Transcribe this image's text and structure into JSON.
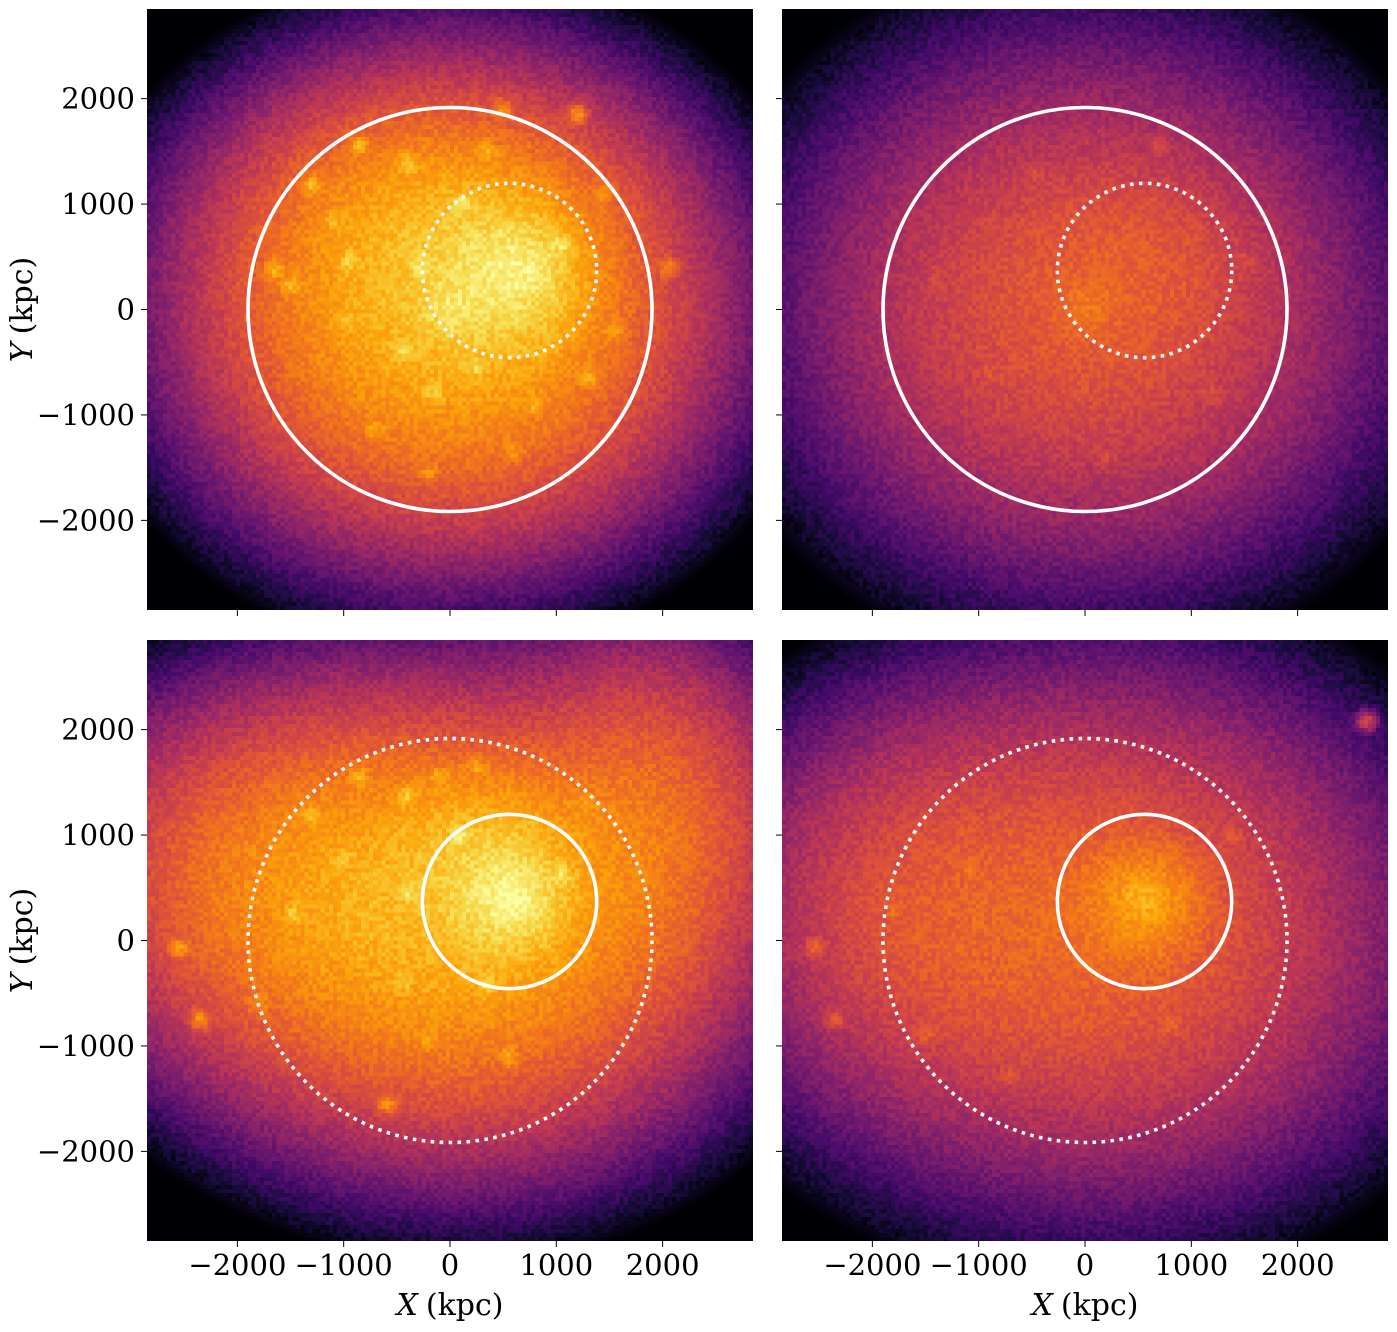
{
  "chart_data": {
    "type": "heatmap",
    "colormap": "inferno",
    "axes": {
      "xlabel_var": "X",
      "ylabel_var": "Y",
      "unit": "(kpc)",
      "xlim": [
        -2850,
        2850
      ],
      "ylim": [
        -2850,
        2850
      ],
      "xticks": [
        -2000,
        -1000,
        0,
        1000,
        2000
      ],
      "yticks": [
        -2000,
        -1000,
        0,
        1000,
        2000
      ],
      "xtick_labels": [
        "−2000",
        "−1000",
        "0",
        "1000",
        "2000"
      ],
      "ytick_labels": [
        "2000",
        "1000",
        "0",
        "−1000",
        "−2000"
      ]
    },
    "circles": {
      "large": {
        "cx": 0,
        "cy": 0,
        "r": 1900
      },
      "small": {
        "cx": 560,
        "cy": 370,
        "r": 820
      }
    },
    "panels": [
      {
        "id": "top-left",
        "large_style": "solid",
        "small_style": "dotted",
        "show_x_ticklabels": false,
        "show_y_ticklabels": true,
        "peak_brightness": 1.0,
        "blobs": [
          {
            "x": 0,
            "y": 0,
            "sx": 1150,
            "sy": 1050,
            "amp": 0.55
          },
          {
            "x": 540,
            "y": 330,
            "sx": 420,
            "sy": 420,
            "amp": 0.45
          },
          {
            "x": 0,
            "y": 0,
            "sx": 160,
            "sy": 160,
            "amp": 0.25
          },
          {
            "x": 700,
            "y": 380,
            "sx": 220,
            "sy": 220,
            "amp": 0.25
          },
          {
            "x": -200,
            "y": 900,
            "sx": 900,
            "sy": 600,
            "amp": 0.15
          }
        ],
        "clumps": [
          [
            100,
            1000,
            0.9
          ],
          [
            1050,
            620,
            0.8
          ],
          [
            -450,
            -380,
            0.75
          ],
          [
            -950,
            450,
            0.7
          ],
          [
            -400,
            1380,
            0.7
          ],
          [
            -850,
            1550,
            0.6
          ],
          [
            -1300,
            1180,
            0.6
          ],
          [
            -1650,
            380,
            0.55
          ],
          [
            -1500,
            230,
            0.55
          ],
          [
            -150,
            -800,
            0.55
          ],
          [
            1200,
            1850,
            0.5
          ],
          [
            250,
            -550,
            0.5
          ],
          [
            -1000,
            -100,
            0.45
          ],
          [
            500,
            1900,
            0.4
          ],
          [
            1550,
            -200,
            0.4
          ],
          [
            1300,
            -650,
            0.4
          ],
          [
            -700,
            -1150,
            0.35
          ],
          [
            -300,
            400,
            0.5
          ],
          [
            350,
            1500,
            0.45
          ],
          [
            800,
            -900,
            0.35
          ],
          [
            1450,
            1100,
            0.35
          ],
          [
            -1100,
            850,
            0.35
          ],
          [
            2050,
            400,
            0.3
          ],
          [
            -200,
            -1550,
            0.3
          ],
          [
            600,
            -1350,
            0.3
          ]
        ]
      },
      {
        "id": "top-right",
        "large_style": "solid",
        "small_style": "dotted",
        "show_x_ticklabels": false,
        "show_y_ticklabels": false,
        "peak_brightness": 0.75,
        "blobs": [
          {
            "x": 0,
            "y": 0,
            "sx": 1200,
            "sy": 1100,
            "amp": 0.5
          },
          {
            "x": 0,
            "y": 0,
            "sx": 170,
            "sy": 170,
            "amp": 0.3
          },
          {
            "x": 500,
            "y": 400,
            "sx": 600,
            "sy": 500,
            "amp": 0.15
          }
        ],
        "clumps": [
          [
            700,
            1550,
            0.35
          ],
          [
            -500,
            1300,
            0.3
          ],
          [
            1200,
            -800,
            0.3
          ],
          [
            -900,
            -600,
            0.25
          ],
          [
            1500,
            450,
            0.25
          ],
          [
            200,
            -1400,
            0.25
          ],
          [
            -1400,
            300,
            0.2
          ],
          [
            600,
            1000,
            0.2
          ],
          [
            -300,
            -300,
            0.2
          ]
        ]
      },
      {
        "id": "bottom-left",
        "large_style": "dotted",
        "small_style": "solid",
        "show_x_ticklabels": true,
        "show_y_ticklabels": true,
        "peak_brightness": 1.0,
        "blobs": [
          {
            "x": 100,
            "y": 150,
            "sx": 1250,
            "sy": 1050,
            "amp": 0.45
          },
          {
            "x": 570,
            "y": 380,
            "sx": 330,
            "sy": 330,
            "amp": 0.55
          },
          {
            "x": 570,
            "y": 380,
            "sx": 130,
            "sy": 130,
            "amp": 0.3
          },
          {
            "x": 300,
            "y": 900,
            "sx": 500,
            "sy": 400,
            "amp": 0.2
          },
          {
            "x": -1500,
            "y": 600,
            "sx": 1100,
            "sy": 900,
            "amp": 0.2
          },
          {
            "x": 1900,
            "y": 1200,
            "sx": 700,
            "sy": 900,
            "amp": 0.15
          }
        ],
        "clumps": [
          [
            100,
            1000,
            0.85
          ],
          [
            1050,
            620,
            0.75
          ],
          [
            -400,
            460,
            0.7
          ],
          [
            -400,
            1380,
            0.65
          ],
          [
            -850,
            1550,
            0.55
          ],
          [
            -1300,
            1180,
            0.55
          ],
          [
            -1470,
            240,
            0.55
          ],
          [
            -2350,
            -750,
            0.5
          ],
          [
            -2550,
            -70,
            0.45
          ],
          [
            -1000,
            800,
            0.4
          ],
          [
            -100,
            1550,
            0.45
          ],
          [
            350,
            -430,
            0.55
          ],
          [
            -450,
            -400,
            0.5
          ],
          [
            550,
            -1100,
            0.4
          ],
          [
            -600,
            -1550,
            0.4
          ],
          [
            250,
            1650,
            0.35
          ],
          [
            1300,
            1300,
            0.3
          ],
          [
            -1800,
            -600,
            0.3
          ],
          [
            -200,
            -950,
            0.3
          ]
        ]
      },
      {
        "id": "bottom-right",
        "large_style": "dotted",
        "small_style": "solid",
        "show_x_ticklabels": true,
        "show_y_ticklabels": false,
        "peak_brightness": 0.85,
        "blobs": [
          {
            "x": 100,
            "y": 100,
            "sx": 1350,
            "sy": 1150,
            "amp": 0.35
          },
          {
            "x": 560,
            "y": 380,
            "sx": 320,
            "sy": 320,
            "amp": 0.55
          },
          {
            "x": 560,
            "y": 380,
            "sx": 120,
            "sy": 120,
            "amp": 0.3
          },
          {
            "x": -1600,
            "y": 300,
            "sx": 900,
            "sy": 900,
            "amp": 0.15
          }
        ],
        "clumps": [
          [
            -2550,
            -70,
            0.4
          ],
          [
            -2350,
            -750,
            0.35
          ],
          [
            -1800,
            300,
            0.3
          ],
          [
            -1100,
            700,
            0.25
          ],
          [
            -1500,
            -900,
            0.25
          ],
          [
            800,
            -800,
            0.25
          ],
          [
            -700,
            -1300,
            0.2
          ],
          [
            1400,
            1000,
            0.2
          ],
          [
            2650,
            2080,
            0.3
          ]
        ]
      }
    ]
  }
}
